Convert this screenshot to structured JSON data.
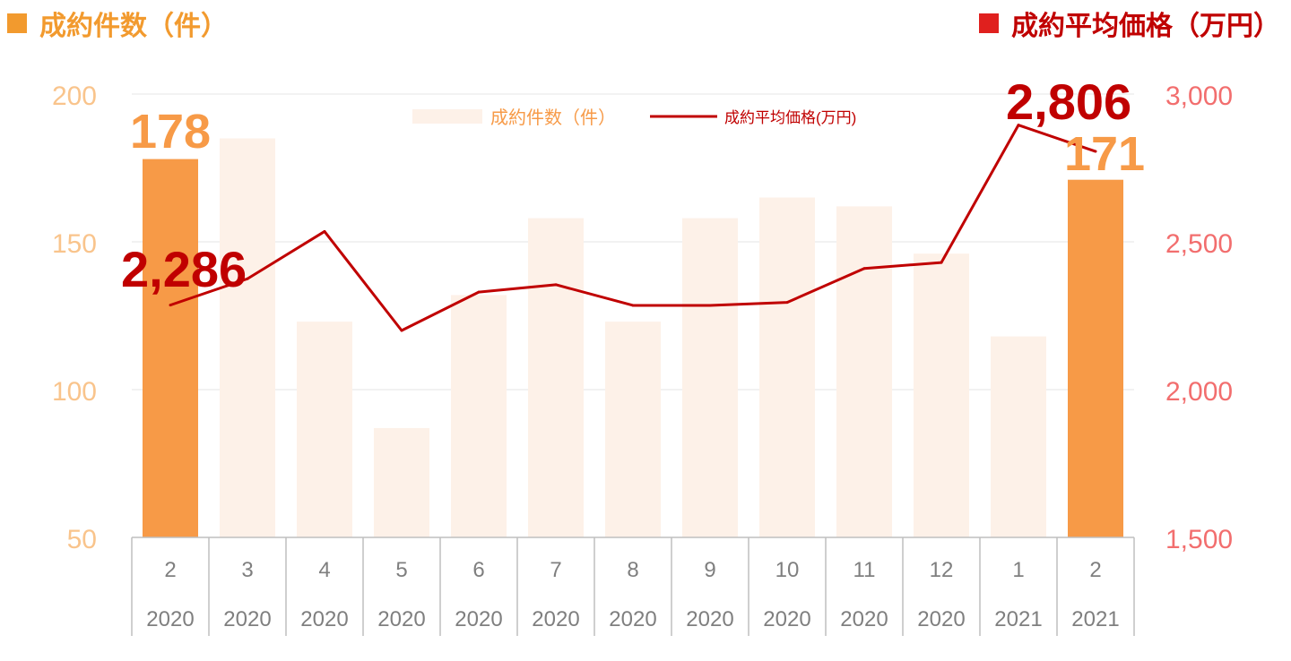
{
  "header": {
    "left_title": "成約件数（件）",
    "right_title": "成約平均価格（万円）"
  },
  "colors": {
    "bar_highlight": "#F79A47",
    "bar_light": "#FDF1E8",
    "line": "#C00000",
    "left_axis_text": "#F9C48C",
    "right_axis_text": "#F26E6E",
    "left_header": "#F29A2E",
    "right_header_square": "#E0201E"
  },
  "chart_data": {
    "type": "bar",
    "categories": [
      {
        "month": "2",
        "year": "2020"
      },
      {
        "month": "3",
        "year": "2020"
      },
      {
        "month": "4",
        "year": "2020"
      },
      {
        "month": "5",
        "year": "2020"
      },
      {
        "month": "6",
        "year": "2020"
      },
      {
        "month": "7",
        "year": "2020"
      },
      {
        "month": "8",
        "year": "2020"
      },
      {
        "month": "9",
        "year": "2020"
      },
      {
        "month": "10",
        "year": "2020"
      },
      {
        "month": "11",
        "year": "2020"
      },
      {
        "month": "12",
        "year": "2020"
      },
      {
        "month": "1",
        "year": "2021"
      },
      {
        "month": "2",
        "year": "2021"
      }
    ],
    "series": [
      {
        "name": "成約件数（件）",
        "type": "bar",
        "axis": "left",
        "values": [
          178,
          185,
          123,
          87,
          132,
          158,
          123,
          158,
          165,
          162,
          146,
          118,
          171
        ],
        "highlight": [
          true,
          false,
          false,
          false,
          false,
          false,
          false,
          false,
          false,
          false,
          false,
          false,
          true
        ]
      },
      {
        "name": "成約平均価格(万円)",
        "type": "line",
        "axis": "right",
        "values": [
          2286,
          2375,
          2535,
          2200,
          2330,
          2355,
          2285,
          2285,
          2295,
          2410,
          2430,
          2895,
          2806
        ]
      }
    ],
    "left_axis": {
      "ylim": [
        50,
        200
      ],
      "ticks": [
        "50",
        "100",
        "150",
        "200"
      ]
    },
    "right_axis": {
      "ylim": [
        1500,
        3000
      ],
      "ticks": [
        "1,500",
        "2,000",
        "2,500",
        "3,000"
      ]
    },
    "data_labels": [
      {
        "series": 0,
        "index": 0,
        "text": "178"
      },
      {
        "series": 0,
        "index": 12,
        "text": "171"
      },
      {
        "series": 1,
        "index": 0,
        "text": "2,286"
      },
      {
        "series": 1,
        "index": 12,
        "text": "2,806"
      }
    ],
    "legend": {
      "placement": "top-center",
      "items": [
        "成約件数（件）",
        "成約平均価格(万円)"
      ]
    },
    "grid": true
  }
}
